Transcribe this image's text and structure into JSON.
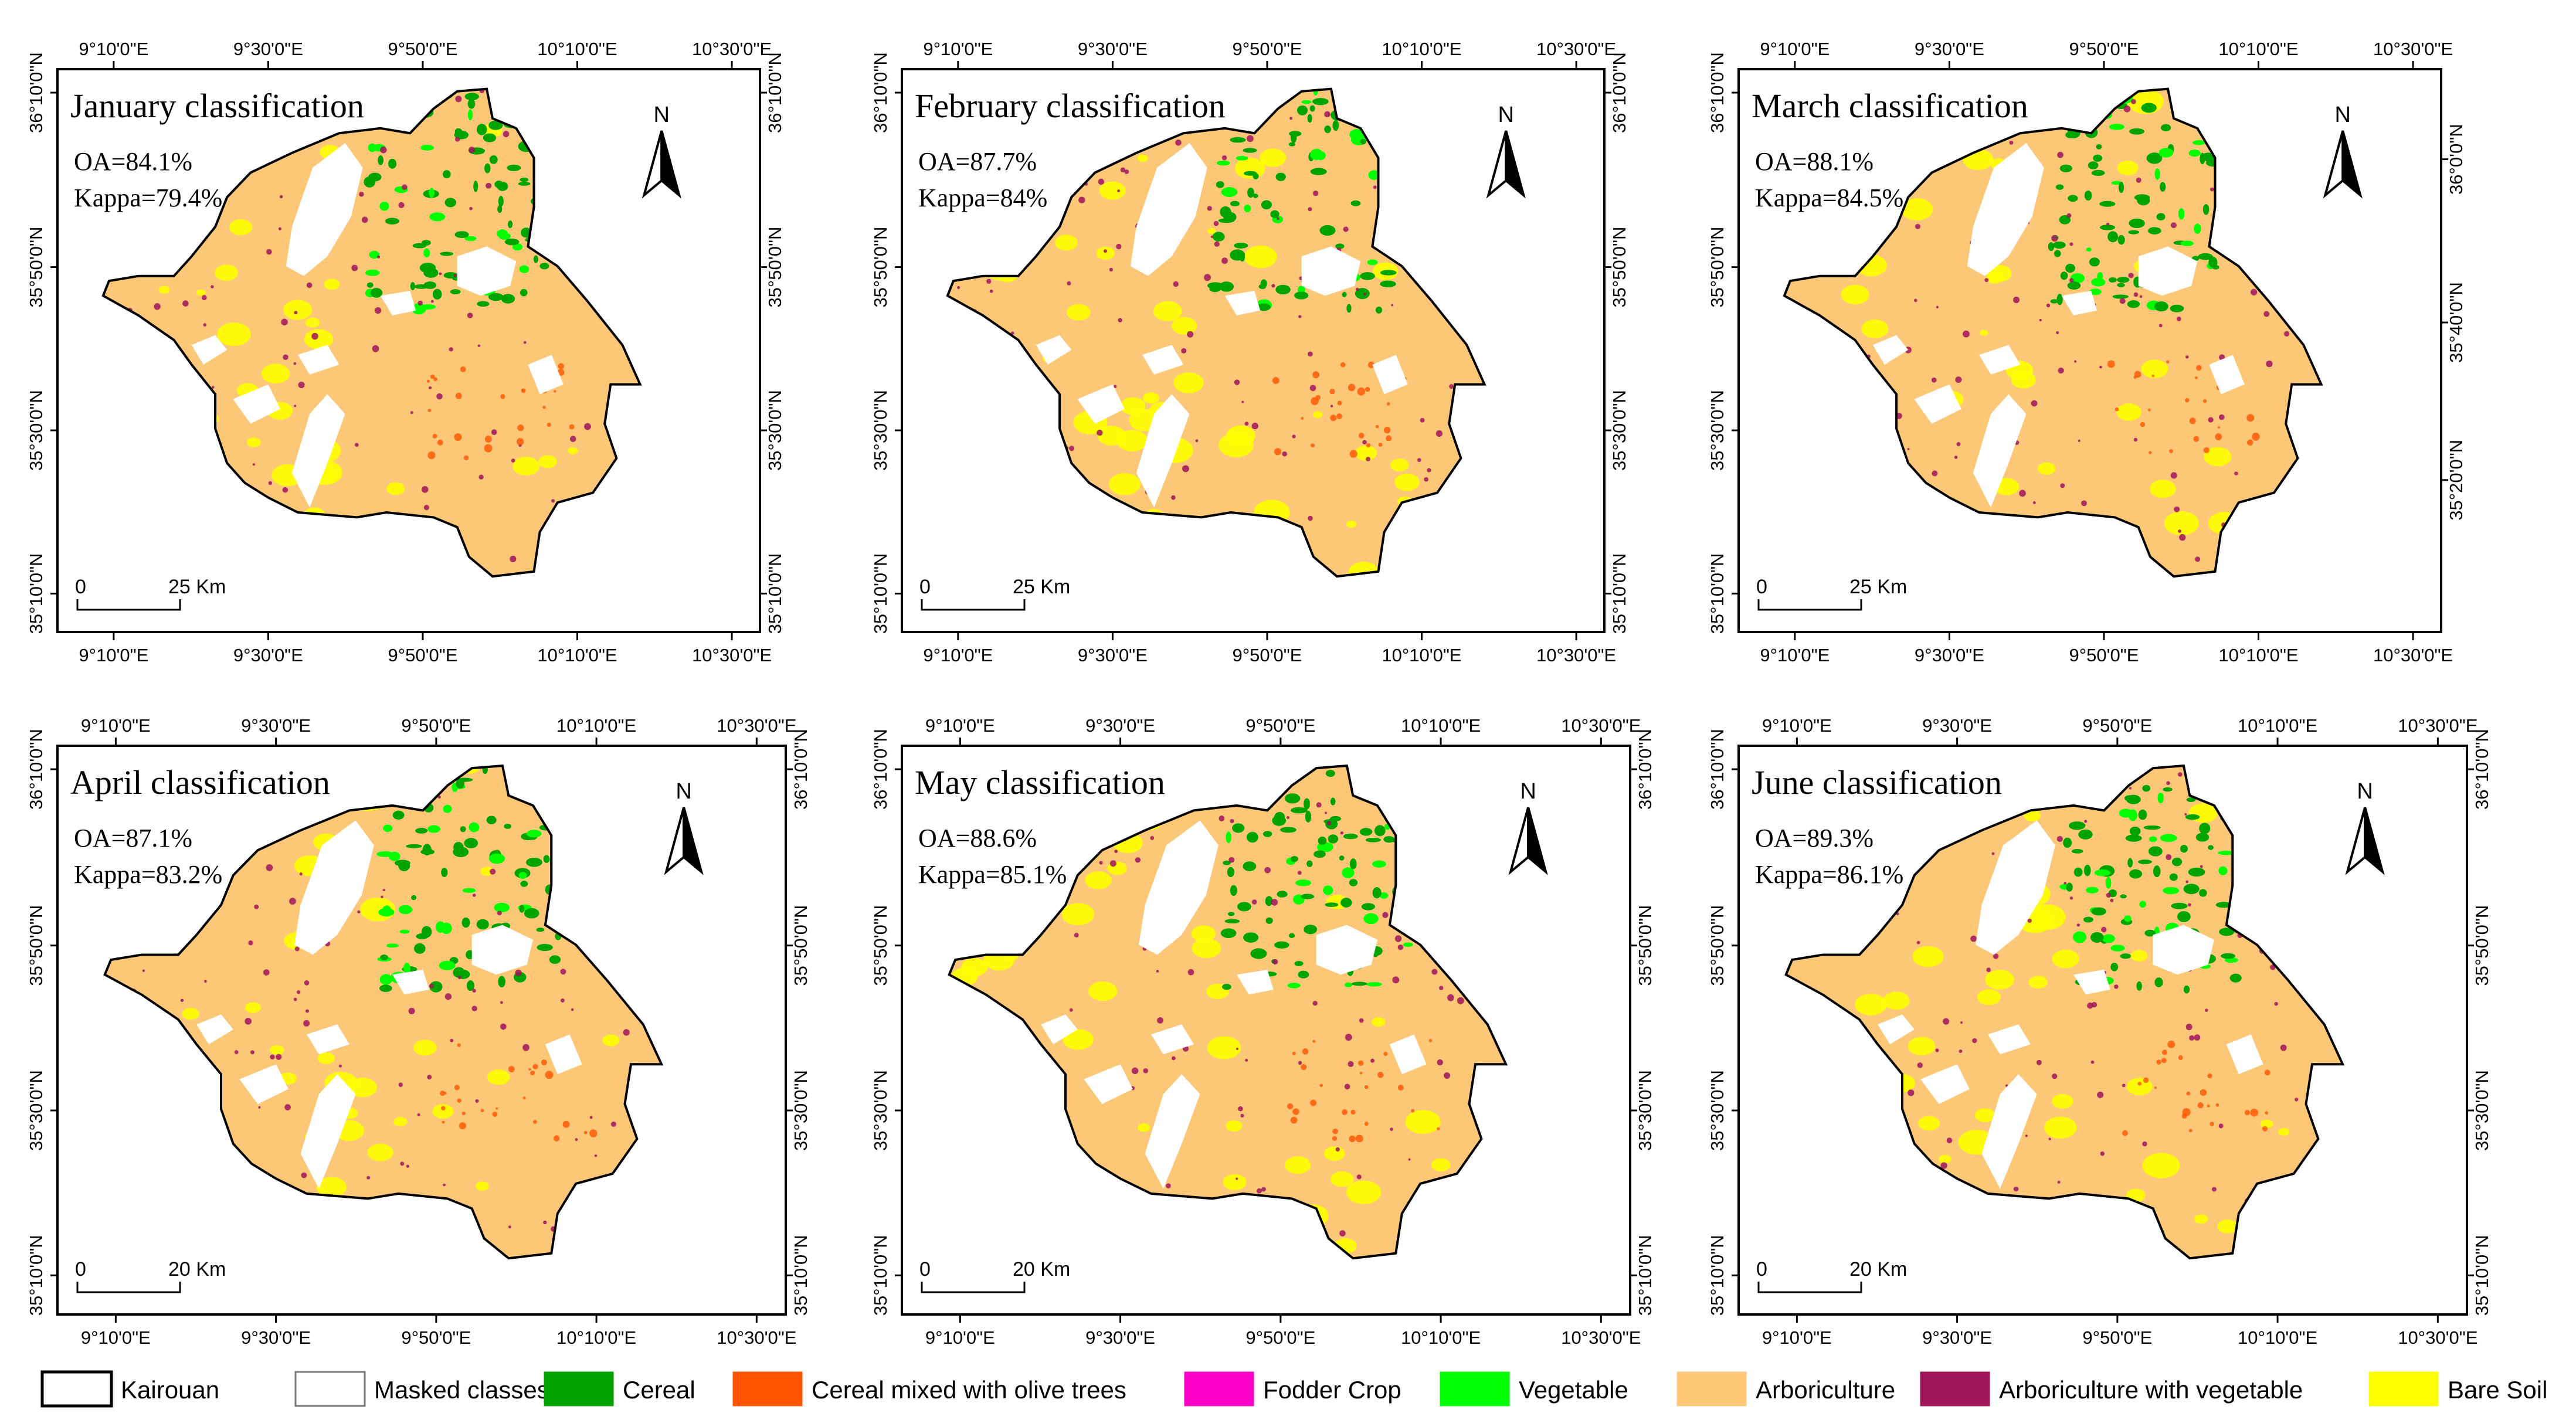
{
  "figure": {
    "panels": [
      {
        "id": "january",
        "title": "January classification",
        "oa": "OA=84.1%",
        "kappa": "Kappa=79.4%",
        "scale_zero": "0",
        "scale_label": "25 Km"
      },
      {
        "id": "february",
        "title": "February classification",
        "oa": "OA=87.7%",
        "kappa": "Kappa=84%",
        "scale_zero": "0",
        "scale_label": "25 Km"
      },
      {
        "id": "march",
        "title": "March classification",
        "oa": "OA=88.1%",
        "kappa": "Kappa=84.5%",
        "scale_zero": "0",
        "scale_label": "25 Km"
      },
      {
        "id": "april",
        "title": "April classification",
        "oa": "OA=87.1%",
        "kappa": "Kappa=83.2%",
        "scale_zero": "0",
        "scale_label": "20 Km"
      },
      {
        "id": "may",
        "title": "May classification",
        "oa": "OA=88.6%",
        "kappa": "Kappa=85.1%",
        "scale_zero": "0",
        "scale_label": "20 Km"
      },
      {
        "id": "june",
        "title": "June classification",
        "oa": "OA=89.3%",
        "kappa": "Kappa=86.1%",
        "scale_zero": "0",
        "scale_label": "20 Km"
      }
    ],
    "lon_ticks": [
      "9°10'0\"E",
      "9°30'0\"E",
      "9°50'0\"E",
      "10°10'0\"E",
      "10°30'0\"E"
    ],
    "lat_ticks": [
      "36°10'0\"N",
      "35°50'0\"N",
      "35°30'0\"N",
      "35°10'0\"N"
    ],
    "march_right_lat_ticks": [
      "36°0'0\"N",
      "35°40'0\"N",
      "35°20'0\"N"
    ],
    "north_label": "N",
    "legend": [
      {
        "label": "Kairouan",
        "color": "#ffffff",
        "swatch": "outline-dark"
      },
      {
        "label": "Masked classes",
        "color": "#ffffff",
        "swatch": "outline-grey"
      },
      {
        "label": "Cereal",
        "color": "#00a400",
        "swatch": "fill"
      },
      {
        "label": "Cereal mixed with olive trees",
        "color": "#ff5500",
        "swatch": "fill"
      },
      {
        "label": "Fodder Crop",
        "color": "#ff00c8",
        "swatch": "fill"
      },
      {
        "label": "Vegetable",
        "color": "#00ff00",
        "swatch": "fill"
      },
      {
        "label": "Arboriculture",
        "color": "#fcc878",
        "swatch": "fill"
      },
      {
        "label": "Arboriculture with vegetable",
        "color": "#a0145a",
        "swatch": "fill"
      },
      {
        "label": "Bare Soil",
        "color": "#ffff00",
        "swatch": "fill"
      }
    ],
    "colors": {
      "arboriculture": "#fcc878",
      "bare_soil": "#ffff00",
      "cereal": "#00a400",
      "vegetable": "#00ff00",
      "arbo_vegetable": "#a0145a",
      "cereal_olive": "#ff5500",
      "outline": "#000000"
    }
  }
}
